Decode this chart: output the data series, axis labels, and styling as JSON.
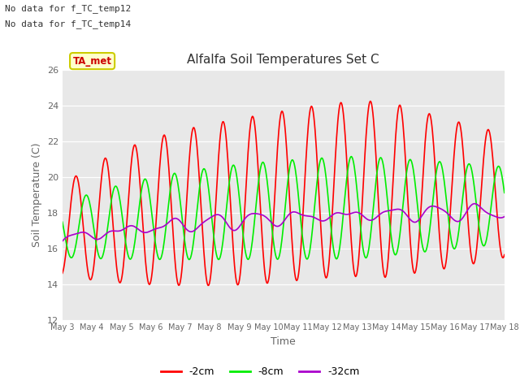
{
  "title": "Alfalfa Soil Temperatures Set C",
  "xlabel": "Time",
  "ylabel": "Soil Temperature (C)",
  "ylim": [
    12,
    26
  ],
  "yticks": [
    12,
    14,
    16,
    18,
    20,
    22,
    24,
    26
  ],
  "background_color": "#e8e8e8",
  "annotations": [
    "No data for f_TC_temp12",
    "No data for f_TC_temp14"
  ],
  "ta_met_label": "TA_met",
  "ta_met_bg": "#ffffcc",
  "ta_met_border": "#cccc00",
  "series": {
    "red": {
      "label": "-2cm",
      "color": "#ff0000"
    },
    "green": {
      "label": "-8cm",
      "color": "#00ee00"
    },
    "purple": {
      "label": "-32cm",
      "color": "#aa00cc"
    }
  },
  "xtick_labels": [
    "May 3",
    "May 4",
    "May 5",
    "May 6",
    "May 7",
    "May 8",
    "May 9",
    "May 10",
    "May 11",
    "May 12",
    "May 13",
    "May 14",
    "May 15",
    "May 16",
    "May 17",
    "May 18"
  ],
  "n_days": 15,
  "points_per_day": 48
}
